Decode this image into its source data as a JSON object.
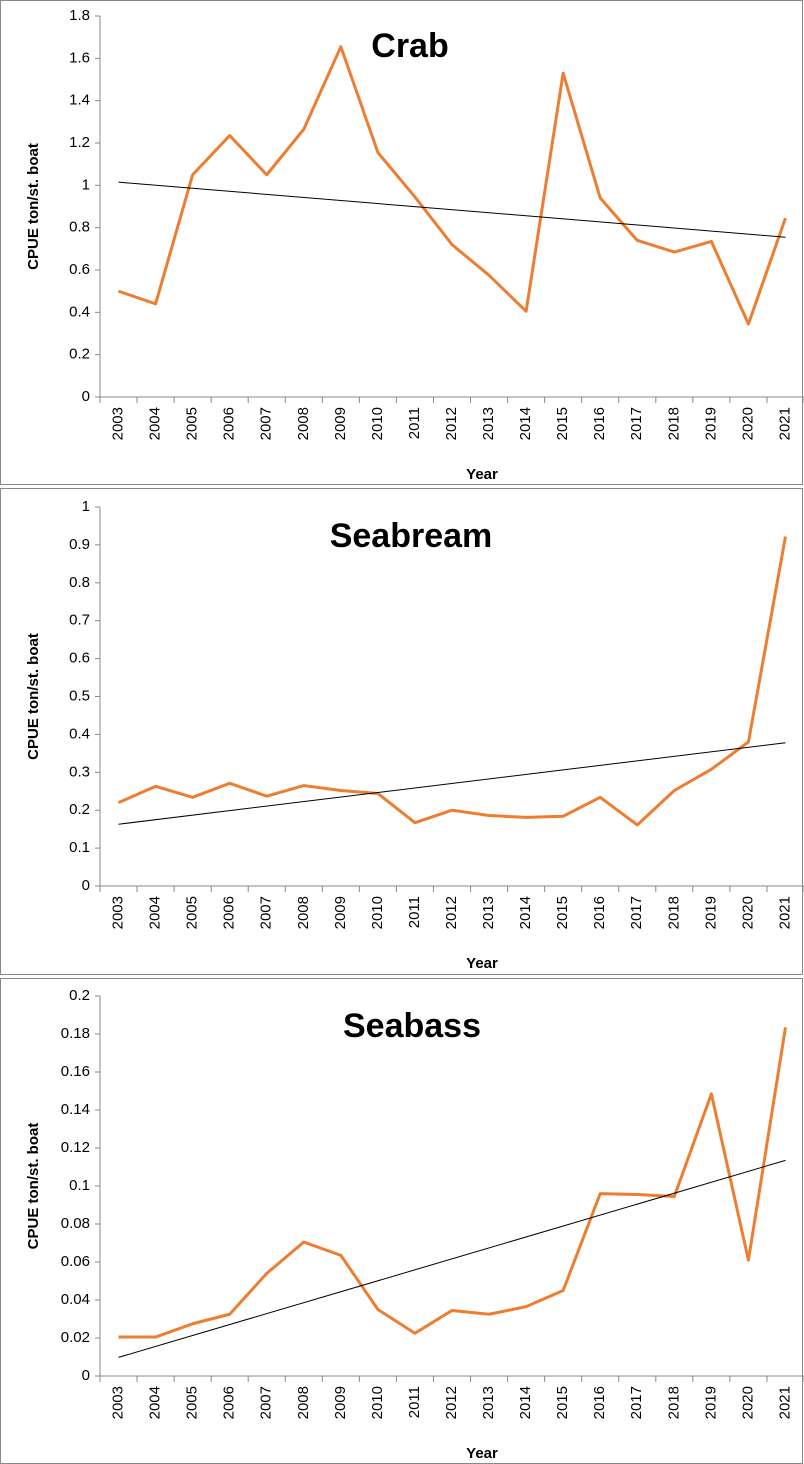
{
  "chart_data": [
    {
      "type": "line",
      "title": "Crab",
      "xlabel": "Year",
      "ylabel": "CPUE ton/st. boat",
      "categories": [
        "2003",
        "2004",
        "2005",
        "2006",
        "2007",
        "2008",
        "2009",
        "2010",
        "2011",
        "2012",
        "2013",
        "2014",
        "2015",
        "2016",
        "2017",
        "2018",
        "2019",
        "2020",
        "2021"
      ],
      "series": [
        {
          "color": "#ed7d31",
          "values": [
            0.5,
            0.44,
            1.05,
            1.235,
            1.05,
            1.265,
            1.655,
            1.155,
            0.945,
            0.72,
            0.575,
            0.405,
            1.53,
            0.94,
            0.74,
            0.685,
            0.735,
            0.345,
            0.845
          ]
        }
      ],
      "trend": {
        "color": "#000000",
        "values": [
          1.015,
          0.755
        ]
      },
      "ylim": [
        0,
        1.8
      ],
      "yticks": [
        0,
        0.2,
        0.4,
        0.6,
        0.8,
        1,
        1.2,
        1.4,
        1.6,
        1.8
      ]
    },
    {
      "type": "line",
      "title": "Seabream",
      "xlabel": "Year",
      "ylabel": "CPUE ton/st. boat",
      "categories": [
        "2003",
        "2004",
        "2005",
        "2006",
        "2007",
        "2008",
        "2009",
        "2010",
        "2011",
        "2012",
        "2013",
        "2014",
        "2015",
        "2016",
        "2017",
        "2018",
        "2019",
        "2020",
        "2021"
      ],
      "series": [
        {
          "color": "#ed7d31",
          "values": [
            0.22,
            0.263,
            0.234,
            0.271,
            0.237,
            0.265,
            0.252,
            0.244,
            0.167,
            0.2,
            0.186,
            0.181,
            0.184,
            0.234,
            0.161,
            0.252,
            0.308,
            0.38,
            0.922
          ]
        }
      ],
      "trend": {
        "color": "#000000",
        "values": [
          0.163,
          0.378
        ]
      },
      "ylim": [
        0,
        1
      ],
      "yticks": [
        0,
        0.1,
        0.2,
        0.3,
        0.4,
        0.5,
        0.6,
        0.7,
        0.8,
        0.9,
        1
      ]
    },
    {
      "type": "line",
      "title": "Seabass",
      "xlabel": "Year",
      "ylabel": "CPUE ton/st. boat",
      "categories": [
        "2003",
        "2004",
        "2005",
        "2006",
        "2007",
        "2008",
        "2009",
        "2010",
        "2011",
        "2012",
        "2013",
        "2014",
        "2015",
        "2016",
        "2017",
        "2018",
        "2019",
        "2020",
        "2021"
      ],
      "series": [
        {
          "color": "#ed7d31",
          "values": [
            0.0205,
            0.0205,
            0.0275,
            0.0325,
            0.054,
            0.0705,
            0.0635,
            0.035,
            0.0225,
            0.0345,
            0.0325,
            0.0365,
            0.045,
            0.096,
            0.0955,
            0.0945,
            0.1485,
            0.061,
            0.1835
          ]
        }
      ],
      "trend": {
        "color": "#000000",
        "values": [
          0.0098,
          0.1135
        ]
      },
      "ylim": [
        0,
        0.2
      ],
      "yticks": [
        0,
        0.02,
        0.04,
        0.06,
        0.08,
        0.1,
        0.12,
        0.14,
        0.16,
        0.18,
        0.2
      ]
    }
  ]
}
